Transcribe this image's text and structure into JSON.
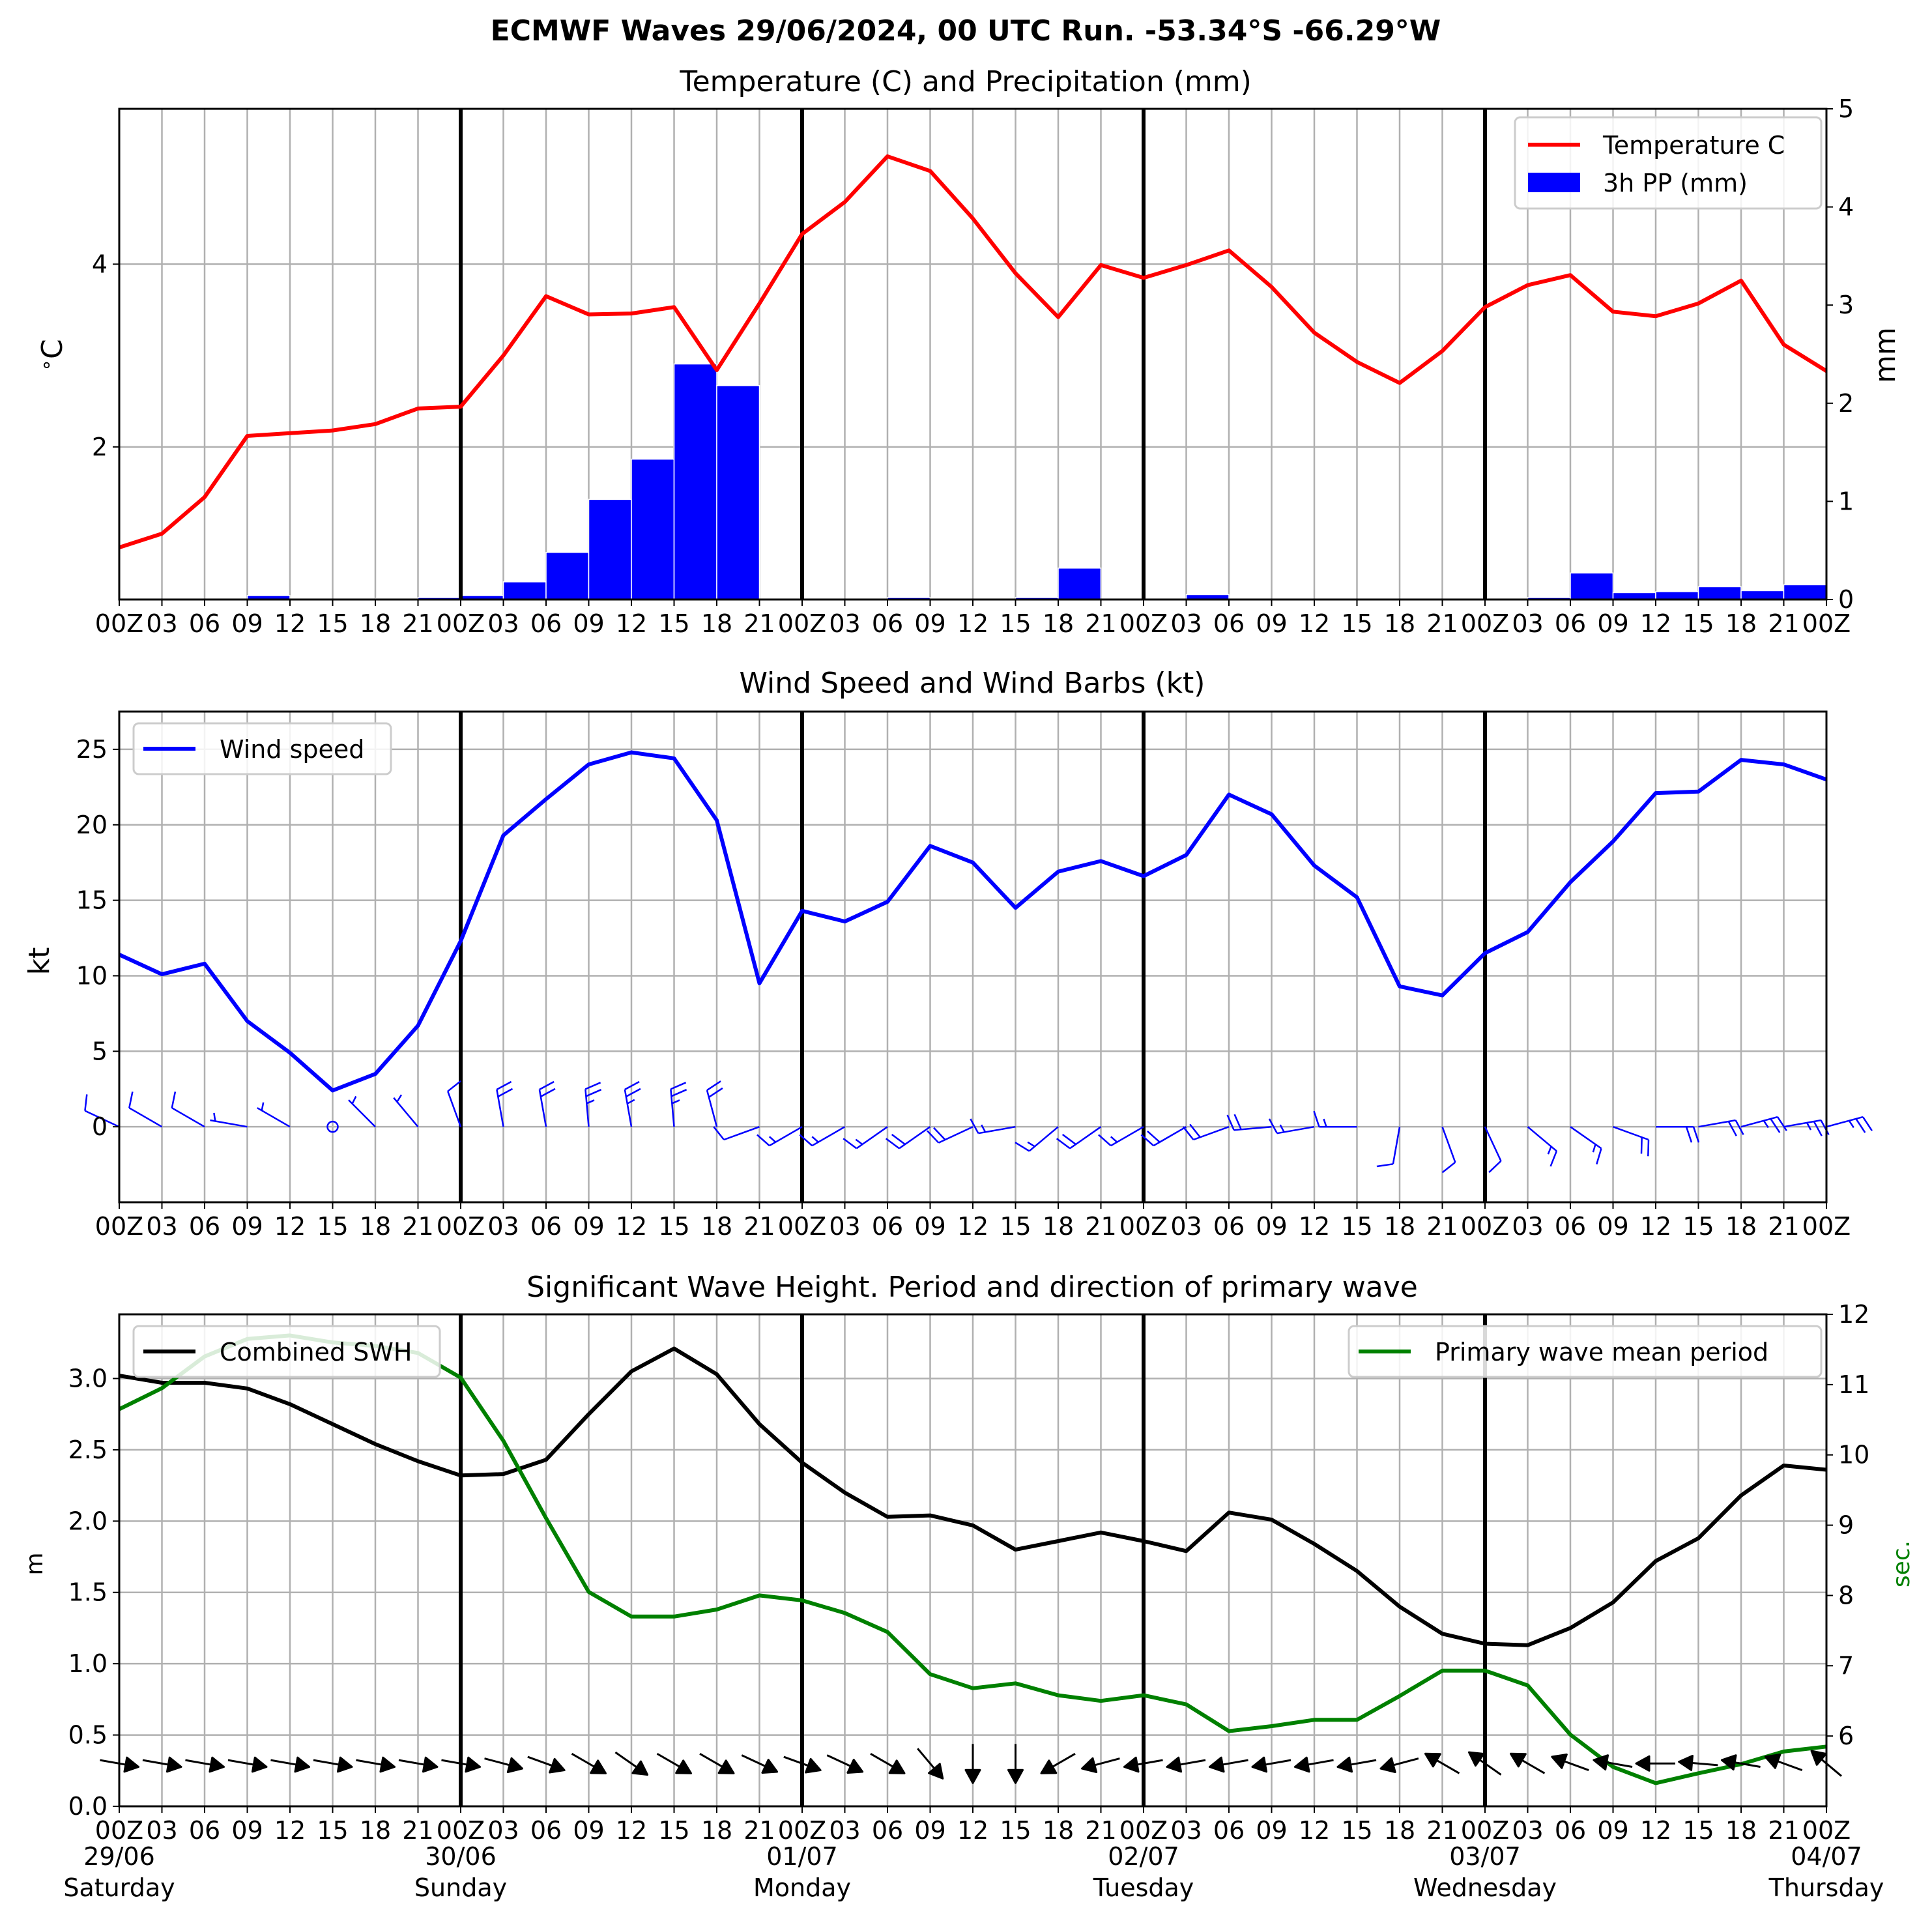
{
  "suptitle": "ECMWF Waves 29/06/2024, 00 UTC Run. -53.34°S -66.29°W",
  "colors": {
    "temperature": "#ff0000",
    "precip": "#0000ff",
    "wind": "#0000ff",
    "swh": "#000000",
    "period": "#008000",
    "grid": "#b0b0b0"
  },
  "time_axis": {
    "hour_labels": [
      "00Z",
      "03",
      "06",
      "09",
      "12",
      "15",
      "18",
      "21",
      "00Z",
      "03",
      "06",
      "09",
      "12",
      "15",
      "18",
      "21",
      "00Z",
      "03",
      "06",
      "09",
      "12",
      "15",
      "18",
      "21",
      "00Z",
      "03",
      "06",
      "09",
      "12",
      "15",
      "18",
      "21",
      "00Z",
      "03",
      "06",
      "09",
      "12",
      "15",
      "18",
      "21",
      "00Z"
    ],
    "day_dates": [
      "29/06",
      "30/06",
      "01/07",
      "02/07",
      "03/07",
      "04/07"
    ],
    "day_names": [
      "Saturday",
      "Sunday",
      "Monday",
      "Tuesday",
      "Wednesday",
      "Thursday"
    ]
  },
  "chart_data": [
    {
      "type": "line",
      "title": "Temperature (C) and Precipitation (mm)",
      "ylabel": "$^\\circ$C",
      "ylabel_right": "mm",
      "ylim": [
        0.33,
        5.7
      ],
      "ylim_right": [
        0,
        5
      ],
      "yticks": [
        2,
        4
      ],
      "yticks_right": [
        0,
        1,
        2,
        3,
        4,
        5
      ],
      "legend_position": "top-right",
      "grid": true,
      "x_hours": [
        0,
        3,
        6,
        9,
        12,
        15,
        18,
        21,
        24,
        27,
        30,
        33,
        36,
        39,
        42,
        45,
        48,
        51,
        54,
        57,
        60,
        63,
        66,
        69,
        72,
        75,
        78,
        81,
        84,
        87,
        90,
        93,
        96,
        99,
        102,
        105,
        108,
        111,
        114,
        117,
        120
      ],
      "series": [
        {
          "name": "Temperature C",
          "axis": "left",
          "values": [
            0.9,
            1.05,
            1.45,
            2.12,
            2.15,
            2.18,
            2.25,
            2.42,
            2.44,
            3.0,
            3.65,
            3.45,
            3.46,
            3.53,
            2.84,
            3.57,
            4.33,
            4.68,
            5.18,
            5.02,
            4.5,
            3.9,
            3.42,
            3.99,
            3.85,
            3.99,
            4.15,
            3.75,
            3.25,
            2.93,
            2.7,
            3.05,
            3.53,
            3.77,
            3.88,
            3.48,
            3.43,
            3.57,
            3.82,
            3.12,
            2.83
          ]
        },
        {
          "name": "3h PP (mm)",
          "axis": "right",
          "type": "bar",
          "values": [
            0,
            0,
            0,
            0.04,
            0,
            0,
            0.01,
            0.02,
            0.04,
            0.18,
            0.48,
            1.02,
            1.43,
            2.4,
            2.18,
            0,
            0,
            0,
            0.02,
            0,
            0,
            0.02,
            0.32,
            0,
            0,
            0.05,
            0,
            0,
            0,
            0,
            0,
            0.005,
            0,
            0.02,
            0.27,
            0.07,
            0.08,
            0.13,
            0.09,
            0.15
          ]
        }
      ]
    },
    {
      "type": "line",
      "title": "Wind Speed and Wind Barbs (kt)",
      "ylabel": "kt",
      "ylim": [
        -5,
        27.5
      ],
      "yticks": [
        0,
        5,
        10,
        15,
        20,
        25
      ],
      "legend_position": "top-left",
      "grid": true,
      "x_hours": [
        0,
        3,
        6,
        9,
        12,
        15,
        18,
        21,
        24,
        27,
        30,
        33,
        36,
        39,
        42,
        45,
        48,
        51,
        54,
        57,
        60,
        63,
        66,
        69,
        72,
        75,
        78,
        81,
        84,
        87,
        90,
        93,
        96,
        99,
        102,
        105,
        108,
        111,
        114,
        117,
        120
      ],
      "series": [
        {
          "name": "Wind speed",
          "values": [
            11.4,
            10.1,
            10.8,
            7.0,
            4.9,
            2.4,
            3.5,
            6.7,
            12.3,
            19.3,
            21.7,
            24.0,
            24.8,
            24.4,
            20.3,
            9.5,
            14.3,
            13.6,
            14.9,
            18.6,
            17.5,
            14.5,
            16.9,
            17.6,
            16.6,
            18.0,
            22.0,
            20.7,
            17.3,
            15.2,
            9.3,
            8.7,
            11.5,
            12.9,
            16.2,
            18.9,
            22.1,
            22.2,
            24.3,
            24.0,
            23.0
          ]
        }
      ],
      "barb_direction_deg": [
        295,
        300,
        300,
        280,
        300,
        0,
        315,
        320,
        340,
        350,
        350,
        355,
        350,
        355,
        345,
        250,
        240,
        240,
        235,
        235,
        245,
        260,
        230,
        235,
        240,
        240,
        250,
        265,
        260,
        270,
        190,
        160,
        155,
        130,
        125,
        110,
        90,
        80,
        75,
        80,
        75
      ]
    },
    {
      "type": "line",
      "title": "Significant Wave Height. Period and direction of primary wave",
      "ylabel": "m",
      "ylabel_right": "sec.",
      "ylim": [
        0,
        3.45
      ],
      "ylim_right": [
        5,
        12
      ],
      "yticks": [
        0.0,
        0.5,
        1.0,
        1.5,
        2.0,
        2.5,
        3.0
      ],
      "yticks_right": [
        6,
        7,
        8,
        9,
        10,
        11,
        12
      ],
      "grid": true,
      "x_hours": [
        0,
        3,
        6,
        9,
        12,
        15,
        18,
        21,
        24,
        27,
        30,
        33,
        36,
        39,
        42,
        45,
        48,
        51,
        54,
        57,
        60,
        63,
        66,
        69,
        72,
        75,
        78,
        81,
        84,
        87,
        90,
        93,
        96,
        99,
        102,
        105,
        108,
        111,
        114,
        117,
        120
      ],
      "series": [
        {
          "name": "Combined SWH",
          "axis": "left",
          "legend_position": "top-left",
          "values": [
            3.02,
            2.97,
            2.97,
            2.93,
            2.82,
            2.68,
            2.54,
            2.42,
            2.32,
            2.33,
            2.43,
            2.75,
            3.05,
            3.21,
            3.03,
            2.68,
            2.41,
            2.2,
            2.03,
            2.04,
            1.97,
            1.8,
            1.86,
            1.92,
            1.86,
            1.79,
            2.06,
            2.01,
            1.84,
            1.65,
            1.4,
            1.21,
            1.14,
            1.13,
            1.25,
            1.43,
            1.72,
            1.88,
            2.18,
            2.39,
            2.36
          ]
        },
        {
          "name": "Primary wave mean period",
          "axis": "right",
          "legend_position": "top-right",
          "values": [
            10.65,
            10.95,
            11.4,
            11.65,
            11.7,
            11.6,
            11.55,
            11.45,
            11.1,
            10.2,
            9.1,
            8.05,
            7.7,
            7.7,
            7.8,
            8.0,
            7.93,
            7.75,
            7.48,
            6.88,
            6.68,
            6.75,
            6.58,
            6.5,
            6.58,
            6.45,
            6.07,
            6.14,
            6.23,
            6.23,
            6.57,
            6.93,
            6.93,
            6.72,
            6.02,
            5.56,
            5.33,
            5.47,
            5.6,
            5.78,
            5.85
          ]
        }
      ],
      "wave_direction_deg": [
        280,
        280,
        280,
        280,
        280,
        280,
        280,
        280,
        280,
        285,
        290,
        300,
        305,
        300,
        300,
        295,
        290,
        295,
        300,
        320,
        0,
        0,
        60,
        75,
        80,
        80,
        80,
        80,
        80,
        80,
        75,
        120,
        125,
        120,
        110,
        100,
        90,
        95,
        100,
        110,
        130
      ]
    }
  ]
}
